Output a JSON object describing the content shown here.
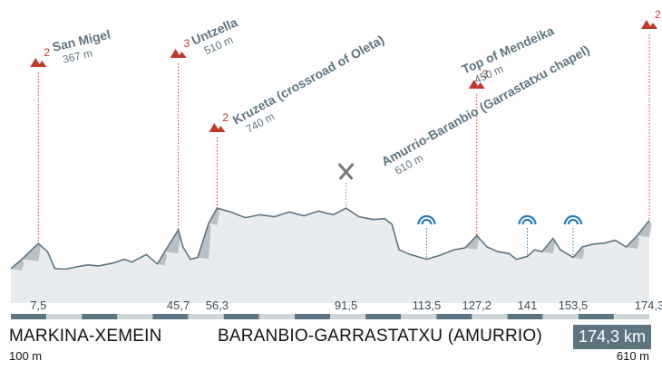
{
  "chart_data": {
    "type": "area",
    "x_unit": "km",
    "total_distance": 174.3,
    "start": {
      "name": "MARKINA-XEMEIN",
      "altitude_label": "100 m"
    },
    "finish": {
      "name": "BARANBIO-GARRASTATXU (AMURRIO)",
      "altitude_label": "610 m"
    },
    "total_label": "174,3 km",
    "km_markers": [
      {
        "km": 7.5,
        "label": "7,5"
      },
      {
        "km": 45.7,
        "label": "45,7"
      },
      {
        "km": 56.3,
        "label": "56,3"
      },
      {
        "km": 91.5,
        "label": "91,5"
      },
      {
        "km": 113.5,
        "label": "113,5"
      },
      {
        "km": 127.2,
        "label": "127,2"
      },
      {
        "km": 141,
        "label": "141"
      },
      {
        "km": 153.5,
        "label": "153,5"
      },
      {
        "km": 174.3,
        "label": "174,3"
      }
    ],
    "climbs": [
      {
        "km": 7.5,
        "category": "2",
        "name": "San Migel",
        "altitude_label": "367 m",
        "altitude_m": 367
      },
      {
        "km": 45.7,
        "category": "3",
        "name": "Untzella",
        "altitude_label": "510 m",
        "altitude_m": 510
      },
      {
        "km": 56.3,
        "category": "2",
        "name": "Kruzeta (crossroad of Oleta)",
        "altitude_label": "740 m",
        "altitude_m": 740
      },
      {
        "km": 127.2,
        "category": "3",
        "name": "Top of Mendeika",
        "altitude_label": "450 m",
        "altitude_m": 450
      },
      {
        "km": 174.3,
        "category": "2",
        "name": "Amurrio-Baranbio (Garrastatxu chapel)",
        "altitude_label": "610 m",
        "altitude_m": 610
      }
    ],
    "feed_zone_km": 91.5,
    "sprint_points_km": [
      113.5,
      141,
      153.5
    ],
    "profile": [
      [
        0,
        100
      ],
      [
        3,
        200
      ],
      [
        7.5,
        367
      ],
      [
        10,
        280
      ],
      [
        12,
        100
      ],
      [
        15,
        95
      ],
      [
        18,
        120
      ],
      [
        21,
        140
      ],
      [
        24,
        130
      ],
      [
        28,
        160
      ],
      [
        31,
        200
      ],
      [
        33,
        170
      ],
      [
        37,
        250
      ],
      [
        40,
        150
      ],
      [
        42,
        280
      ],
      [
        45.7,
        510
      ],
      [
        47,
        330
      ],
      [
        49,
        200
      ],
      [
        51,
        220
      ],
      [
        54,
        580
      ],
      [
        56.3,
        740
      ],
      [
        60,
        700
      ],
      [
        64,
        640
      ],
      [
        68,
        670
      ],
      [
        72,
        650
      ],
      [
        76,
        700
      ],
      [
        80,
        660
      ],
      [
        84,
        710
      ],
      [
        88,
        670
      ],
      [
        91.5,
        740
      ],
      [
        95,
        650
      ],
      [
        99,
        620
      ],
      [
        102,
        630
      ],
      [
        104,
        570
      ],
      [
        106,
        300
      ],
      [
        109,
        250
      ],
      [
        113.5,
        200
      ],
      [
        117,
        240
      ],
      [
        121,
        300
      ],
      [
        124,
        320
      ],
      [
        127.2,
        450
      ],
      [
        130,
        330
      ],
      [
        133,
        280
      ],
      [
        136,
        260
      ],
      [
        138,
        200
      ],
      [
        141,
        230
      ],
      [
        143,
        300
      ],
      [
        145,
        280
      ],
      [
        148,
        420
      ],
      [
        150,
        300
      ],
      [
        153.5,
        220
      ],
      [
        156,
        330
      ],
      [
        159,
        360
      ],
      [
        162,
        370
      ],
      [
        165,
        400
      ],
      [
        168,
        330
      ],
      [
        171,
        450
      ],
      [
        174.3,
        610
      ]
    ]
  }
}
